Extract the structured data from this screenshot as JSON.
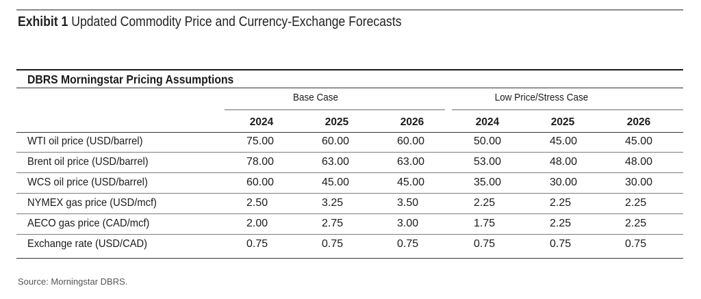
{
  "exhibit": {
    "label": "Exhibit 1",
    "title": "Updated Commodity Price and Currency-Exchange Forecasts"
  },
  "table": {
    "heading": "DBRS Morningstar Pricing Assumptions",
    "groups": [
      "Base Case",
      "Low Price/Stress Case"
    ],
    "years": [
      "2024",
      "2025",
      "2026",
      "2024",
      "2025",
      "2026"
    ],
    "rows": [
      {
        "label": "WTI oil price (USD/barrel)",
        "values": [
          "75.00",
          "60.00",
          "60.00",
          "50.00",
          "45.00",
          "45.00"
        ]
      },
      {
        "label": "Brent oil price (USD/barrel)",
        "values": [
          "78.00",
          "63.00",
          "63.00",
          "53.00",
          "48.00",
          "48.00"
        ]
      },
      {
        "label": "WCS oil price (USD/barrel)",
        "values": [
          "60.00",
          "45.00",
          "45.00",
          "35.00",
          "30.00",
          "30.00"
        ]
      },
      {
        "label": "NYMEX gas price (USD/mcf)",
        "values": [
          "2.50",
          "3.25",
          "3.50",
          "2.25",
          "2.25",
          "2.25"
        ]
      },
      {
        "label": "AECO gas price (CAD/mcf)",
        "values": [
          "2.00",
          "2.75",
          "3.00",
          "1.75",
          "2.25",
          "2.25"
        ]
      },
      {
        "label": "Exchange rate (USD/CAD)",
        "values": [
          "0.75",
          "0.75",
          "0.75",
          "0.75",
          "0.75",
          "0.75"
        ]
      }
    ]
  },
  "source": "Source: Morningstar DBRS."
}
